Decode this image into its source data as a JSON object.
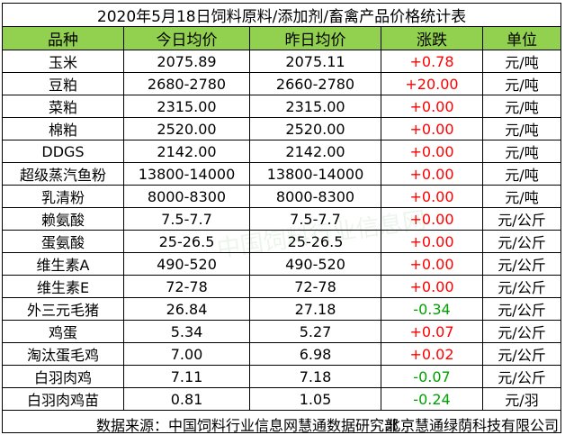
{
  "title": "2020年5月18日饲料原料/添加剂/畜禽产品价格统计表",
  "headers": [
    "品种",
    "今日均价",
    "昨日均价",
    "涨跌",
    "单位"
  ],
  "rows": [
    [
      "玉米",
      "2075.89",
      "2075.11",
      "+0.78",
      "元/吨"
    ],
    [
      "豆粕",
      "2680-2780",
      "2660-2780",
      "+20.00",
      "元/吨"
    ],
    [
      "菜粕",
      "2315.00",
      "2315.00",
      "+0.00",
      "元/吨"
    ],
    [
      "棉粕",
      "2520.00",
      "2520.00",
      "+0.00",
      "元/吨"
    ],
    [
      "DDGS",
      "2142.00",
      "2142.00",
      "+0.00",
      "元/吨"
    ],
    [
      "超级蒸汽鱼粉",
      "13800-14000",
      "13800-14000",
      "+0.00",
      "元/吨"
    ],
    [
      "乳清粉",
      "8000-8300",
      "8000-8300",
      "+0.00",
      "元/吨"
    ],
    [
      "赖氨酸",
      "7.5-7.7",
      "7.5-7.7",
      "+0.00",
      "元/公斤"
    ],
    [
      "蛋氨酸",
      "25-26.5",
      "25-26.5",
      "+0.00",
      "元/公斤"
    ],
    [
      "维生素A",
      "490-520",
      "490-520",
      "+0.00",
      "元/公斤"
    ],
    [
      "维生素E",
      "72-78",
      "72-78",
      "+0.00",
      "元/公斤"
    ],
    [
      "外三元毛猪",
      "26.84",
      "27.18",
      "-0.34",
      "元/公斤"
    ],
    [
      "鸡蛋",
      "5.34",
      "5.27",
      "+0.07",
      "元/公斤"
    ],
    [
      "淘汰蛋毛鸡",
      "7.00",
      "6.98",
      "+0.02",
      "元/公斤"
    ],
    [
      "白羽肉鸡",
      "7.11",
      "7.18",
      "-0.07",
      "元/公斤"
    ],
    [
      "白羽肉鸡苗",
      "0.81",
      "1.05",
      "-0.24",
      "元/羽"
    ]
  ],
  "footer": {
    "source": "数据来源：中国饲料行业信息网慧通数据研究部",
    "company": "北京慧通绿荫科技有限公司"
  },
  "colors": {
    "header_bg": "#92d050",
    "up": "#ff0000",
    "down": "#00a000"
  }
}
